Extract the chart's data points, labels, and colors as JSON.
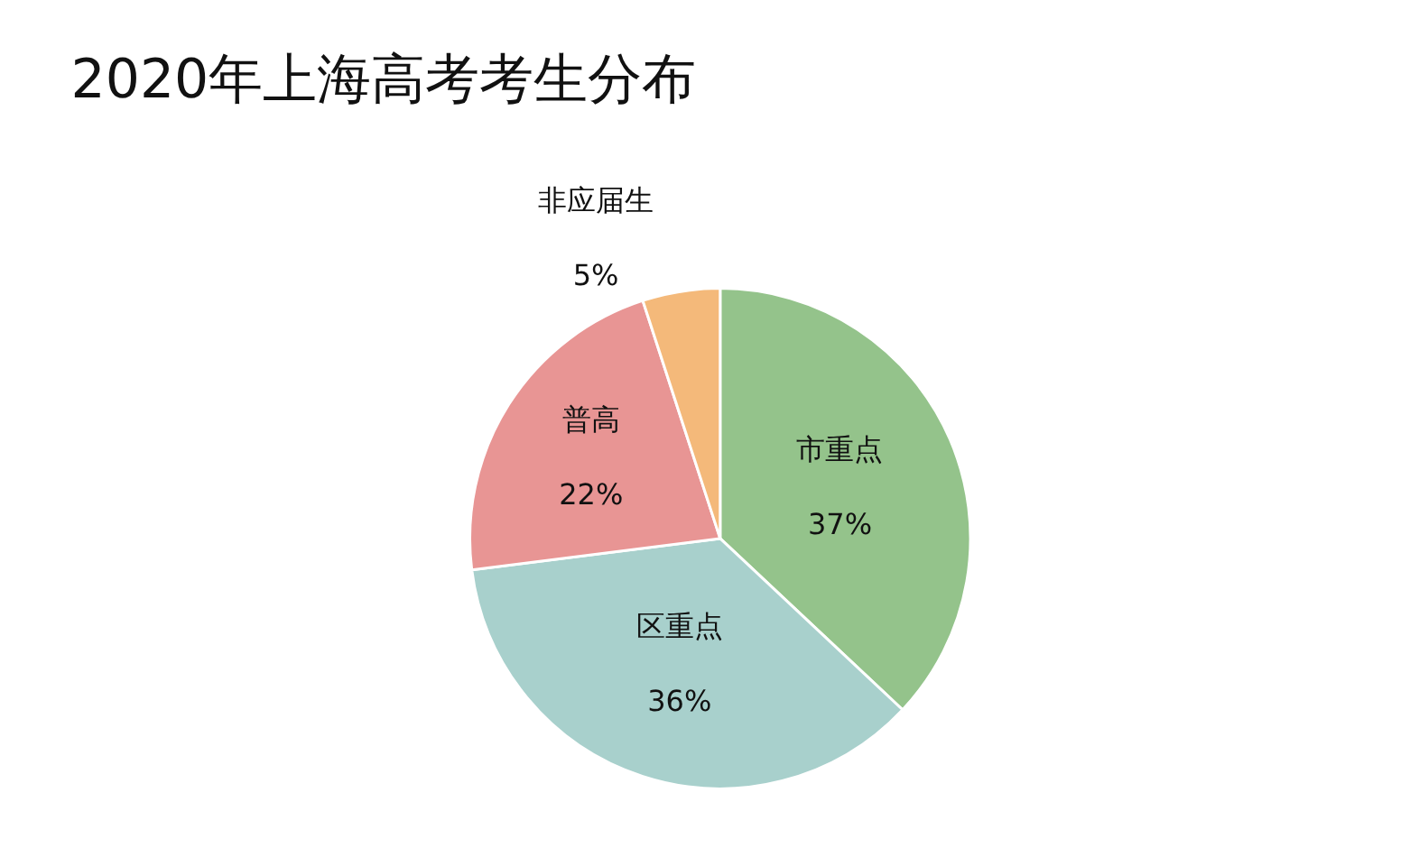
{
  "chart_data": {
    "type": "pie",
    "title": "2020年上海高考考生分布",
    "categories": [
      "市重点",
      "区重点",
      "普高",
      "非应届生"
    ],
    "values": [
      37,
      36,
      22,
      5
    ],
    "value_labels": [
      "37%",
      "36%",
      "22%",
      "5%"
    ],
    "colors": [
      "#94c38b",
      "#a8d0cc",
      "#e89594",
      "#f4b97a"
    ],
    "legend": false
  }
}
